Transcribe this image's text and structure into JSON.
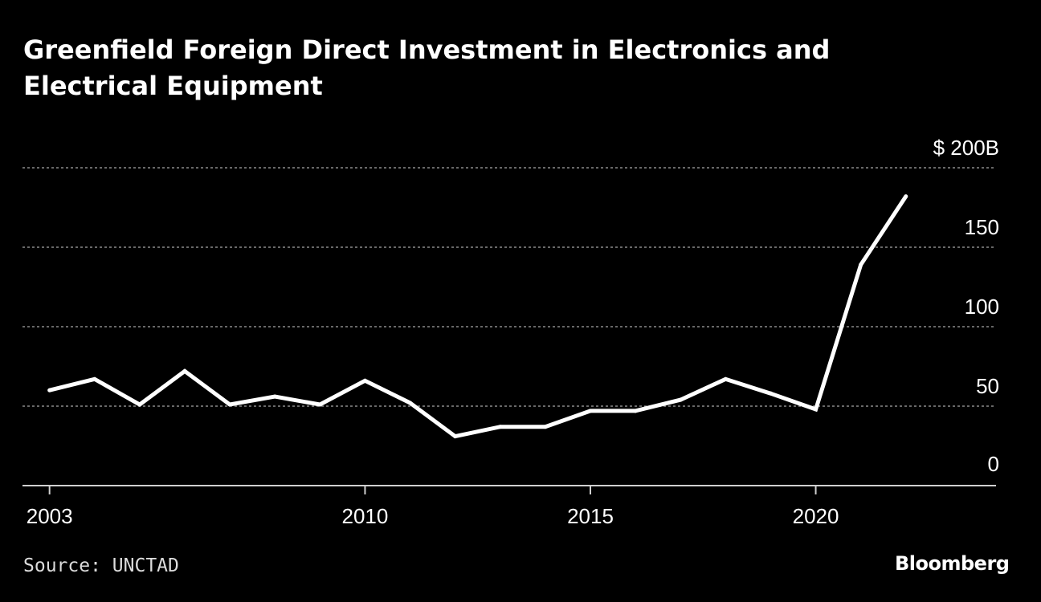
{
  "title": "Greenfield Foreign Direct Investment in Electronics and Electrical Equipment",
  "source": "Source: UNCTAD",
  "brand": "Bloomberg",
  "colors": {
    "background": "#000000",
    "line": "#ffffff",
    "grid": "#8a8a8a",
    "text": "#ffffff"
  },
  "chart_data": {
    "type": "line",
    "title": "Greenfield Foreign Direct Investment in Electronics and Electrical Equipment",
    "xlabel": "",
    "ylabel": "",
    "unit_prefix": "$",
    "unit_suffix": "B",
    "x": [
      2003,
      2004,
      2005,
      2006,
      2007,
      2008,
      2009,
      2010,
      2011,
      2012,
      2013,
      2014,
      2015,
      2016,
      2017,
      2018,
      2019,
      2020,
      2021,
      2022
    ],
    "series": [
      {
        "name": "Greenfield FDI",
        "values": [
          60,
          67,
          51,
          72,
          51,
          56,
          51,
          66,
          52,
          31,
          37,
          37,
          47,
          47,
          54,
          67,
          58,
          48,
          139,
          182
        ]
      }
    ],
    "ylim": [
      0,
      200
    ],
    "xlim": [
      2002.4,
      2024
    ],
    "y_ticks": [
      0,
      50,
      100,
      150,
      200
    ],
    "y_tick_labels": [
      "0",
      "50",
      "100",
      "150",
      "$ 200B"
    ],
    "x_ticks": [
      2003,
      2010,
      2015,
      2020
    ],
    "x_tick_labels": [
      "2003",
      "2010",
      "2015",
      "2020"
    ],
    "grid": true,
    "y_axis_position": "right"
  }
}
